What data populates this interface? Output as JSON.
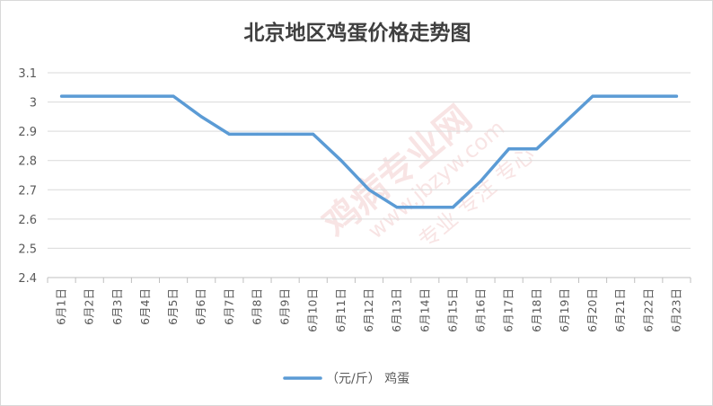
{
  "chart_data": {
    "type": "line",
    "title": "北京地区鸡蛋价格走势图",
    "xlabel": "",
    "ylabel": "",
    "categories": [
      "6月1日",
      "6月2日",
      "6月3日",
      "6月4日",
      "6月5日",
      "6月6日",
      "6月7日",
      "6月8日",
      "6月9日",
      "6月10日",
      "6月11日",
      "6月12日",
      "6月13日",
      "6月14日",
      "6月15日",
      "6月16日",
      "6月17日",
      "6月18日",
      "6月19日",
      "6月20日",
      "6月21日",
      "6月22日",
      "6月23日"
    ],
    "series": [
      {
        "name": "（元/斤） 鸡蛋",
        "color": "#5b9bd5",
        "values": [
          3.02,
          3.02,
          3.02,
          3.02,
          3.02,
          2.95,
          2.89,
          2.89,
          2.89,
          2.89,
          2.8,
          2.7,
          2.64,
          2.64,
          2.64,
          2.73,
          2.84,
          2.84,
          2.93,
          3.02,
          3.02,
          3.02,
          3.02
        ]
      }
    ],
    "ylim": [
      2.4,
      3.1
    ],
    "yticks": [
      "2.4",
      "2.5",
      "2.6",
      "2.7",
      "2.8",
      "2.9",
      "3",
      "3.1"
    ],
    "grid": "horizontal",
    "legend_position": "bottom"
  },
  "watermark": {
    "text": "鸡病专业网",
    "url": "www.jbzyw.com",
    "slogan": "专业 专注 专心"
  }
}
